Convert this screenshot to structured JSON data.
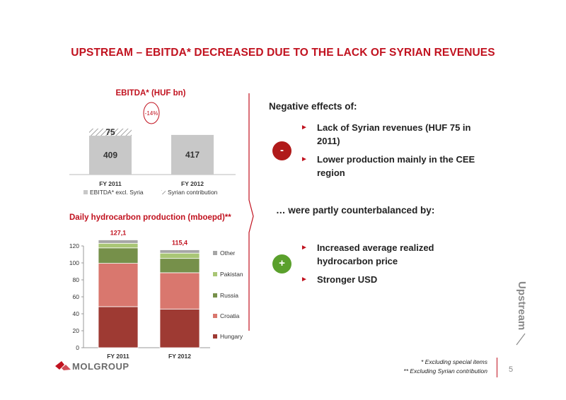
{
  "slide": {
    "title": "UPSTREAM  – EBITDA* DECREASED DUE TO THE LACK OF SYRIAN REVENUES",
    "page_number": "5",
    "side_label": "Upstream",
    "logo_text": "MOLGROUP",
    "footnotes": [
      "* Excluding special items",
      "** Excluding Syrian contribution"
    ]
  },
  "right_panel": {
    "negative_heading": "Negative effects of:",
    "negative_sign": "-",
    "negative_bullets": [
      "Lack of Syrian revenues (HUF 75 in 2011)",
      "Lower production mainly in the CEE region"
    ],
    "counter_heading": "… were partly counterbalanced by:",
    "positive_sign": "+",
    "positive_bullets": [
      "Increased  average realized hydrocarbon price",
      "Stronger USD"
    ]
  },
  "chart_data": [
    {
      "type": "bar",
      "title": "EBITDA* (HUF bn)",
      "categories": [
        "FY 2011",
        "FY 2012"
      ],
      "series": [
        {
          "name": "EBITDA* excl. Syria",
          "values": [
            409,
            417
          ],
          "color": "#c8c8c8"
        },
        {
          "name": "Syrian contribution",
          "values": [
            75,
            0
          ],
          "pattern": "hatched"
        }
      ],
      "annotation": "-14%"
    },
    {
      "type": "bar",
      "title": "Daily hydrocarbon production (mboepd)**",
      "categories": [
        "FY 2011",
        "FY 2012"
      ],
      "totals": [
        "127,1",
        "115,4"
      ],
      "ylim": [
        0,
        120
      ],
      "yticks": [
        0,
        20,
        40,
        60,
        80,
        100,
        120
      ],
      "series": [
        {
          "name": "Hungary",
          "values": [
            48.4,
            45.6
          ],
          "color": "#9e3a33"
        },
        {
          "name": "Croatia",
          "values": [
            51.1,
            42.8
          ],
          "color": "#d9776e"
        },
        {
          "name": "Russia",
          "values": [
            18.2,
            16.9
          ],
          "color": "#76904a"
        },
        {
          "name": "Pakistan",
          "values": [
            5.4,
            6.2
          ],
          "color": "#a9c675"
        },
        {
          "name": "Other",
          "values": [
            4.0,
            3.9
          ],
          "color": "#a6a6a6"
        }
      ],
      "legend_order": [
        "Other",
        "Pakistan",
        "Russia",
        "Croatia",
        "Hungary"
      ]
    }
  ],
  "colors": {
    "accent": "#c1121f",
    "positive": "#5aa02c"
  }
}
